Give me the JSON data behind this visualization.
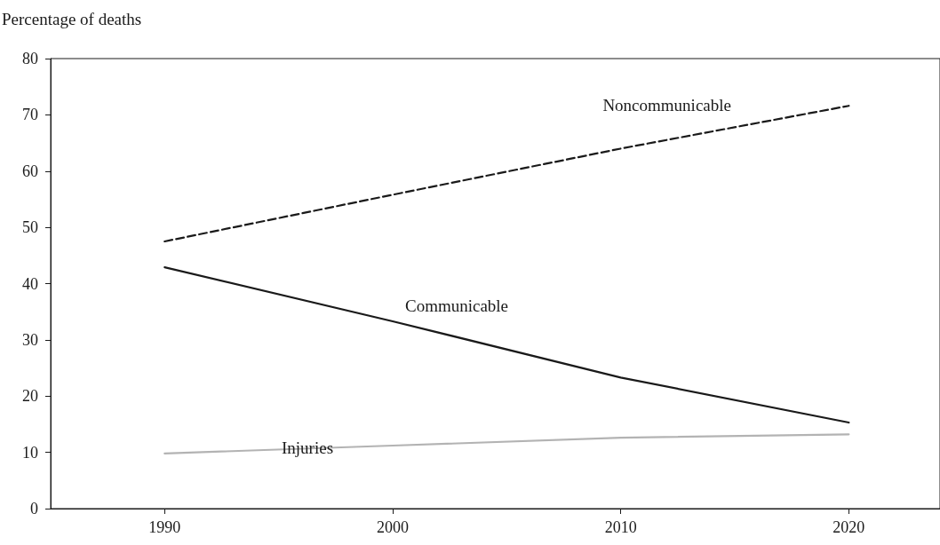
{
  "chart_data": {
    "type": "line",
    "ylabel": "Percentage of deaths",
    "x": [
      1990,
      2000,
      2010,
      2020
    ],
    "xlim": [
      1985,
      2024
    ],
    "xticks": [
      1990,
      2000,
      2010,
      2020
    ],
    "ylim": [
      0,
      80
    ],
    "yticks": [
      0,
      10,
      20,
      30,
      40,
      50,
      60,
      70,
      80
    ],
    "grid": false,
    "marker": "none",
    "series": [
      {
        "name": "Noncommunicable",
        "color": "#1a1a1a",
        "line_style": "dashed",
        "values": [
          47.5,
          55.8,
          64.0,
          71.6
        ]
      },
      {
        "name": "Communicable",
        "color": "#1a1a1a",
        "line_style": "solid",
        "values": [
          42.9,
          33.3,
          23.3,
          15.3
        ]
      },
      {
        "name": "Injuries",
        "color": "#b3b3b3",
        "line_style": "solid",
        "values": [
          9.8,
          11.2,
          12.6,
          13.2
        ]
      }
    ]
  }
}
